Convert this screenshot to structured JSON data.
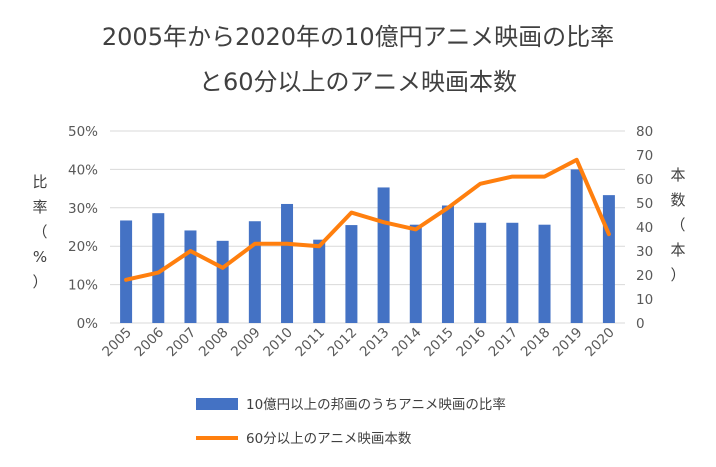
{
  "chart_data": {
    "type": "bar+line",
    "title_lines": [
      "2005年から2020年の10億円アニメ映画の比率",
      "と60分以上のアニメ映画本数"
    ],
    "categories": [
      "2005",
      "2006",
      "2007",
      "2008",
      "2009",
      "2010",
      "2011",
      "2012",
      "2013",
      "2014",
      "2015",
      "2016",
      "2017",
      "2018",
      "2019",
      "2020"
    ],
    "series": [
      {
        "name": "10億円以上の邦画のうちアニメ映画の比率",
        "type": "bar",
        "axis": "left",
        "color": "#4472C4",
        "values": [
          0.267,
          0.286,
          0.241,
          0.214,
          0.265,
          0.31,
          0.217,
          0.255,
          0.353,
          0.256,
          0.306,
          0.261,
          0.261,
          0.256,
          0.4,
          0.333
        ]
      },
      {
        "name": "60分以上のアニメ映画本数",
        "type": "line",
        "axis": "right",
        "color": "#FF7F0E",
        "values": [
          18,
          21,
          30,
          23,
          33,
          33,
          32,
          46,
          42,
          39,
          48,
          58,
          61,
          61,
          68,
          37
        ]
      }
    ],
    "left_axis": {
      "label_chars": [
        "比",
        "率",
        "（",
        "%",
        "）"
      ],
      "ticks": [
        "0%",
        "10%",
        "20%",
        "30%",
        "40%",
        "50%"
      ],
      "ylim": [
        0,
        0.5
      ]
    },
    "right_axis": {
      "label_chars": [
        "本",
        "数",
        "（",
        "本",
        "）"
      ],
      "ticks": [
        "0",
        "10",
        "20",
        "30",
        "40",
        "50",
        "60",
        "70",
        "80"
      ],
      "ylim": [
        0,
        80
      ]
    },
    "grid": true,
    "legend_position": "bottom"
  }
}
